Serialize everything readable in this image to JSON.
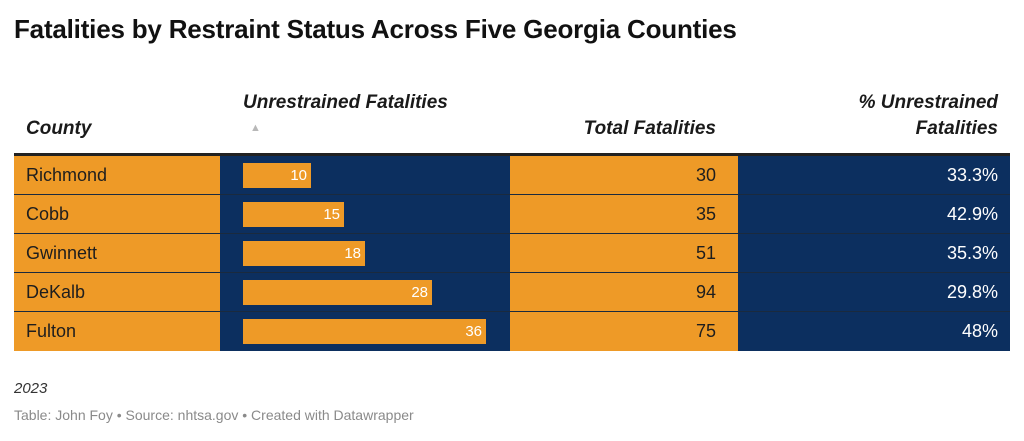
{
  "title": "Fatalities by Restraint Status Across Five Georgia Counties",
  "headers": {
    "county": "County",
    "unrestrained": "Unrestrained Fatalities",
    "sort_icon": "▲",
    "total": "Total Fatalities",
    "pct_line1": "% Unrestrained",
    "pct_line2": "Fatalities"
  },
  "colors": {
    "orange": "#ee9a27",
    "navy": "#0c2f5f"
  },
  "chart_data": {
    "type": "table",
    "title": "Fatalities by Restraint Status Across Five Georgia Counties",
    "columns": [
      "County",
      "Unrestrained Fatalities",
      "Total Fatalities",
      "% Unrestrained Fatalities"
    ],
    "bar_max": 36,
    "rows": [
      {
        "county": "Richmond",
        "unrestrained": 10,
        "total": 30,
        "pct": "33.3%"
      },
      {
        "county": "Cobb",
        "unrestrained": 15,
        "total": 35,
        "pct": "42.9%"
      },
      {
        "county": "Gwinnett",
        "unrestrained": 18,
        "total": 51,
        "pct": "35.3%"
      },
      {
        "county": "DeKalb",
        "unrestrained": 28,
        "total": 94,
        "pct": "29.8%"
      },
      {
        "county": "Fulton",
        "unrestrained": 36,
        "total": 75,
        "pct": "48%"
      }
    ]
  },
  "note": "2023",
  "footer": "Table: John Foy • Source: nhtsa.gov • Created with Datawrapper"
}
